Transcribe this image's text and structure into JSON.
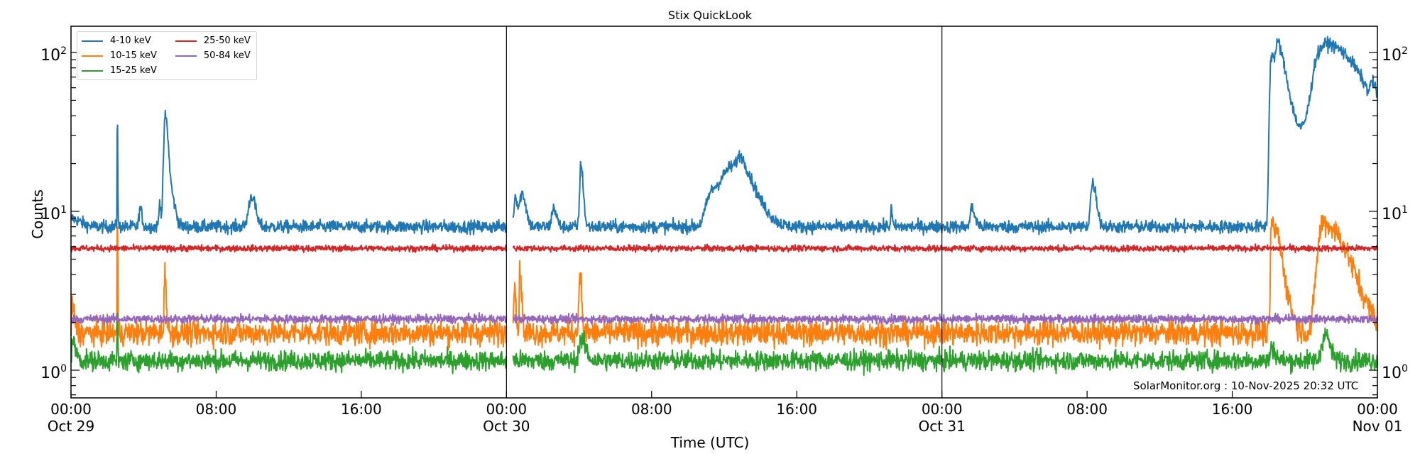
{
  "title": "Stix QuickLook",
  "watermark": "SolarMonitor.org : 10-Nov-2025 20:32 UTC",
  "xlabel": "Time (UTC)",
  "ylabel": "Counts",
  "x_ticks": [
    {
      "hours": 0,
      "time": "00:00",
      "date": "Oct 29"
    },
    {
      "hours": 8,
      "time": "08:00",
      "date": ""
    },
    {
      "hours": 16,
      "time": "16:00",
      "date": ""
    },
    {
      "hours": 24,
      "time": "00:00",
      "date": "Oct 30"
    },
    {
      "hours": 32,
      "time": "08:00",
      "date": ""
    },
    {
      "hours": 40,
      "time": "16:00",
      "date": ""
    },
    {
      "hours": 48,
      "time": "00:00",
      "date": "Oct 31"
    },
    {
      "hours": 56,
      "time": "08:00",
      "date": ""
    },
    {
      "hours": 64,
      "time": "16:00",
      "date": ""
    },
    {
      "hours": 72,
      "time": "00:00",
      "date": "Nov 01"
    }
  ],
  "y_ticks": [
    {
      "value": 1,
      "base": "10",
      "exp": "0"
    },
    {
      "value": 10,
      "base": "10",
      "exp": "1"
    },
    {
      "value": 100,
      "base": "10",
      "exp": "2"
    }
  ],
  "legend": [
    {
      "label": "4-10 keV",
      "color": "#1f77b4"
    },
    {
      "label": "25-50 keV",
      "color": "#d62728"
    },
    {
      "label": "10-15 keV",
      "color": "#ff7f0e"
    },
    {
      "label": "50-84 keV",
      "color": "#9467bd"
    },
    {
      "label": "15-25 keV",
      "color": "#2ca02c"
    }
  ],
  "chart_data": {
    "type": "line",
    "title": "Stix QuickLook",
    "xlabel": "Time (UTC)",
    "ylabel": "Counts",
    "yscale": "log",
    "ylim": [
      0.65,
      150
    ],
    "xlim_hours": [
      0,
      72
    ],
    "x_start": "Oct 29 00:00 UTC",
    "x_end": "Nov 01 00:00 UTC",
    "vertical_lines_hours": [
      24,
      48
    ],
    "data_gap_hours": [
      24.0,
      24.35
    ],
    "grid": false,
    "legend_position": "upper left",
    "series": [
      {
        "name": "4-10 keV",
        "color": "#1f77b4",
        "baseline": 8.0,
        "noise": 0.045,
        "events": [
          {
            "t": 0.0,
            "peak": 9.0,
            "rise": 0.05,
            "decay": 0.5
          },
          {
            "t": 2.55,
            "peak": 42,
            "rise": 0.01,
            "decay": 0.02
          },
          {
            "t": 3.8,
            "peak": 10.5,
            "rise": 0.05,
            "decay": 0.1
          },
          {
            "t": 4.9,
            "peak": 11.5,
            "rise": 0.05,
            "decay": 0.05
          },
          {
            "t": 5.2,
            "peak": 40,
            "rise": 0.08,
            "decay": 0.15
          },
          {
            "t": 5.55,
            "peak": 12,
            "rise": 0.1,
            "decay": 0.2
          },
          {
            "t": 9.95,
            "peak": 12.5,
            "rise": 0.15,
            "decay": 0.2
          },
          {
            "t": 24.5,
            "peak": 12.5,
            "rise": 0.08,
            "decay": 0.1
          },
          {
            "t": 24.85,
            "peak": 13,
            "rise": 0.12,
            "decay": 0.2
          },
          {
            "t": 26.6,
            "peak": 10.5,
            "rise": 0.1,
            "decay": 0.15
          },
          {
            "t": 28.1,
            "peak": 19.5,
            "rise": 0.06,
            "decay": 0.12
          },
          {
            "t": 35.25,
            "peak": 11.5,
            "rise": 0.25,
            "decay": 0.35
          },
          {
            "t": 36.4,
            "peak": 19,
            "rise": 0.6,
            "decay": 0.6
          },
          {
            "t": 36.95,
            "peak": 15,
            "rise": 0.2,
            "decay": 0.9
          },
          {
            "t": 45.2,
            "peak": 10.5,
            "rise": 0.03,
            "decay": 0.05
          },
          {
            "t": 49.6,
            "peak": 10.5,
            "rise": 0.05,
            "decay": 0.2
          },
          {
            "t": 56.3,
            "peak": 15,
            "rise": 0.1,
            "decay": 0.2
          },
          {
            "t": 66.15,
            "peak": 96,
            "rise": 0.08,
            "decay": 0.5
          },
          {
            "t": 66.55,
            "peak": 53,
            "rise": 0.1,
            "decay": 0.9
          },
          {
            "t": 68.6,
            "peak": 18,
            "rise": 0.15,
            "decay": 0.12
          },
          {
            "t": 69.15,
            "peak": 113,
            "rise": 0.6,
            "decay": 1.9
          },
          {
            "t": 71.7,
            "peak": 24,
            "rise": 0.08,
            "decay": 0.35
          }
        ]
      },
      {
        "name": "10-15 keV",
        "color": "#ff7f0e",
        "baseline": 1.72,
        "noise": 0.09,
        "events": [
          {
            "t": 0.05,
            "peak": 2.5,
            "rise": 0.02,
            "decay": 0.15
          },
          {
            "t": 2.55,
            "peak": 10,
            "rise": 0.01,
            "decay": 0.02
          },
          {
            "t": 5.18,
            "peak": 4.3,
            "rise": 0.04,
            "decay": 0.06
          },
          {
            "t": 24.45,
            "peak": 4.0,
            "rise": 0.04,
            "decay": 0.06
          },
          {
            "t": 24.75,
            "peak": 4.3,
            "rise": 0.04,
            "decay": 0.08
          },
          {
            "t": 28.05,
            "peak": 4.3,
            "rise": 0.05,
            "decay": 0.08
          },
          {
            "t": 66.15,
            "peak": 8.2,
            "rise": 0.04,
            "decay": 0.35
          },
          {
            "t": 66.55,
            "peak": 3.6,
            "rise": 0.1,
            "decay": 0.5
          },
          {
            "t": 68.7,
            "peak": 3.0,
            "rise": 0.15,
            "decay": 0.2
          },
          {
            "t": 69.05,
            "peak": 8.3,
            "rise": 0.25,
            "decay": 1.2
          }
        ]
      },
      {
        "name": "15-25 keV",
        "color": "#2ca02c",
        "baseline": 1.15,
        "noise": 0.07,
        "events": [
          {
            "t": 0.05,
            "peak": 1.5,
            "rise": 0.02,
            "decay": 0.2
          },
          {
            "t": 2.55,
            "peak": 2.5,
            "rise": 0.01,
            "decay": 0.02
          },
          {
            "t": 28.1,
            "peak": 1.55,
            "rise": 0.1,
            "decay": 0.25
          },
          {
            "t": 66.15,
            "peak": 1.4,
            "rise": 0.05,
            "decay": 0.2
          },
          {
            "t": 69.1,
            "peak": 1.7,
            "rise": 0.15,
            "decay": 0.25
          }
        ]
      },
      {
        "name": "25-50 keV",
        "color": "#d62728",
        "baseline": 5.85,
        "noise": 0.022,
        "events": []
      },
      {
        "name": "50-84 keV",
        "color": "#9467bd",
        "baseline": 2.1,
        "noise": 0.03,
        "events": []
      }
    ]
  }
}
